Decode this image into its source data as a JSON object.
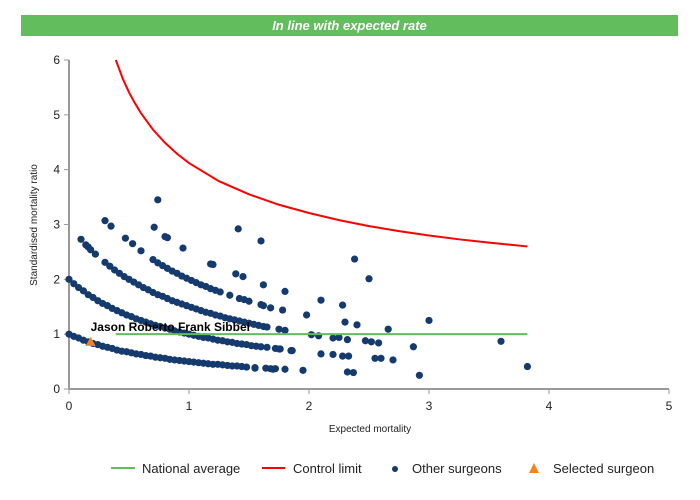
{
  "banner": {
    "text": "In line with expected rate",
    "color": "#62bd5c"
  },
  "chart_data": {
    "type": "scatter",
    "title": "",
    "xlabel": "Expected mortality",
    "ylabel": "Standardised mortality ratio",
    "xlim": [
      0,
      5
    ],
    "ylim": [
      0,
      6
    ],
    "x_ticks": [
      "0",
      "1",
      "2",
      "3",
      "4",
      "5"
    ],
    "y_ticks": [
      "0",
      "1",
      "2",
      "3",
      "4",
      "5",
      "6"
    ],
    "grid": false,
    "legend_placement": "bottom",
    "national_average": {
      "name": "National average",
      "color": "#62bd5c",
      "y": 1,
      "x_range": [
        0.39,
        3.82
      ]
    },
    "control_limit": {
      "name": "Control limit",
      "color": "#ff0000",
      "points": [
        [
          0.39,
          6.0
        ],
        [
          0.45,
          5.65
        ],
        [
          0.5,
          5.41
        ],
        [
          0.55,
          5.21
        ],
        [
          0.6,
          5.03
        ],
        [
          0.7,
          4.73
        ],
        [
          0.8,
          4.49
        ],
        [
          0.9,
          4.29
        ],
        [
          1.0,
          4.12
        ],
        [
          1.25,
          3.79
        ],
        [
          1.5,
          3.55
        ],
        [
          1.75,
          3.36
        ],
        [
          2.0,
          3.21
        ],
        [
          2.25,
          3.08
        ],
        [
          2.5,
          2.97
        ],
        [
          2.75,
          2.88
        ],
        [
          3.0,
          2.8
        ],
        [
          3.25,
          2.73
        ],
        [
          3.5,
          2.67
        ],
        [
          3.82,
          2.6
        ]
      ]
    },
    "other_surgeons": {
      "name": "Other surgeons",
      "color": "#143a6e",
      "points": [
        [
          0,
          1
        ],
        [
          0.04,
          0.96
        ],
        [
          0.08,
          0.93
        ],
        [
          0.12,
          0.89
        ],
        [
          0.16,
          0.86
        ],
        [
          0.2,
          0.83
        ],
        [
          0.24,
          0.81
        ],
        [
          0.28,
          0.78
        ],
        [
          0.32,
          0.76
        ],
        [
          0.36,
          0.74
        ],
        [
          0.4,
          0.71
        ],
        [
          0.44,
          0.69
        ],
        [
          0.48,
          0.68
        ],
        [
          0.52,
          0.66
        ],
        [
          0.56,
          0.64
        ],
        [
          0.6,
          0.63
        ],
        [
          0.64,
          0.61
        ],
        [
          0.68,
          0.6
        ],
        [
          0.72,
          0.58
        ],
        [
          0.76,
          0.57
        ],
        [
          0.8,
          0.56
        ],
        [
          0.84,
          0.54
        ],
        [
          0.88,
          0.53
        ],
        [
          0.92,
          0.52
        ],
        [
          0.96,
          0.51
        ],
        [
          1.0,
          0.5
        ],
        [
          1.04,
          0.49
        ],
        [
          1.08,
          0.48
        ],
        [
          1.12,
          0.47
        ],
        [
          1.16,
          0.46
        ],
        [
          1.2,
          0.45
        ],
        [
          1.24,
          0.45
        ],
        [
          1.28,
          0.44
        ],
        [
          1.32,
          0.43
        ],
        [
          1.36,
          0.42
        ],
        [
          1.4,
          0.42
        ],
        [
          1.44,
          0.41
        ],
        [
          1.48,
          0.4
        ],
        [
          1.55,
          0.39
        ],
        [
          1.64,
          0.38
        ],
        [
          1.68,
          0.37
        ],
        [
          1.72,
          0.37
        ],
        [
          1.8,
          0.36
        ],
        [
          1.95,
          0.34
        ],
        [
          0,
          2
        ],
        [
          0.04,
          1.92
        ],
        [
          0.08,
          1.85
        ],
        [
          0.12,
          1.79
        ],
        [
          0.16,
          1.72
        ],
        [
          0.2,
          1.67
        ],
        [
          0.24,
          1.61
        ],
        [
          0.28,
          1.56
        ],
        [
          0.32,
          1.52
        ],
        [
          0.36,
          1.47
        ],
        [
          0.4,
          1.43
        ],
        [
          0.44,
          1.39
        ],
        [
          0.48,
          1.35
        ],
        [
          0.52,
          1.32
        ],
        [
          0.56,
          1.28
        ],
        [
          0.6,
          1.25
        ],
        [
          0.64,
          1.22
        ],
        [
          0.68,
          1.19
        ],
        [
          0.72,
          1.16
        ],
        [
          0.76,
          1.14
        ],
        [
          0.8,
          1.11
        ],
        [
          0.84,
          1.09
        ],
        [
          0.88,
          1.06
        ],
        [
          0.92,
          1.04
        ],
        [
          0.96,
          1.02
        ],
        [
          1.0,
          1.0
        ],
        [
          1.04,
          0.98
        ],
        [
          1.08,
          0.96
        ],
        [
          1.12,
          0.94
        ],
        [
          1.16,
          0.93
        ],
        [
          1.2,
          0.91
        ],
        [
          1.24,
          0.89
        ],
        [
          1.28,
          0.88
        ],
        [
          1.32,
          0.86
        ],
        [
          1.36,
          0.85
        ],
        [
          1.4,
          0.83
        ],
        [
          1.44,
          0.82
        ],
        [
          1.48,
          0.81
        ],
        [
          1.52,
          0.79
        ],
        [
          1.56,
          0.78
        ],
        [
          1.6,
          0.77
        ],
        [
          1.65,
          0.76
        ],
        [
          1.72,
          0.74
        ],
        [
          1.75,
          0.73
        ],
        [
          1.85,
          0.7
        ],
        [
          0.1,
          2.73
        ],
        [
          0.14,
          2.63
        ],
        [
          0.16,
          2.59
        ],
        [
          0.18,
          2.54
        ],
        [
          0.22,
          2.46
        ],
        [
          0.3,
          2.31
        ],
        [
          0.34,
          2.24
        ],
        [
          0.38,
          2.17
        ],
        [
          0.42,
          2.11
        ],
        [
          0.46,
          2.05
        ],
        [
          0.5,
          2.0
        ],
        [
          0.54,
          1.95
        ],
        [
          0.58,
          1.9
        ],
        [
          0.62,
          1.85
        ],
        [
          0.66,
          1.81
        ],
        [
          0.7,
          1.76
        ],
        [
          0.74,
          1.72
        ],
        [
          0.78,
          1.69
        ],
        [
          0.82,
          1.65
        ],
        [
          0.86,
          1.61
        ],
        [
          0.9,
          1.58
        ],
        [
          0.94,
          1.55
        ],
        [
          0.98,
          1.52
        ],
        [
          1.02,
          1.49
        ],
        [
          1.06,
          1.46
        ],
        [
          1.1,
          1.43
        ],
        [
          1.14,
          1.4
        ],
        [
          1.18,
          1.38
        ],
        [
          1.22,
          1.35
        ],
        [
          1.26,
          1.33
        ],
        [
          1.3,
          1.3
        ],
        [
          1.34,
          1.28
        ],
        [
          1.38,
          1.26
        ],
        [
          1.42,
          1.24
        ],
        [
          1.46,
          1.22
        ],
        [
          1.5,
          1.2
        ],
        [
          1.54,
          1.18
        ],
        [
          1.58,
          1.16
        ],
        [
          1.62,
          1.14
        ],
        [
          1.65,
          1.13
        ],
        [
          1.75,
          1.09
        ],
        [
          1.8,
          1.07
        ],
        [
          0.3,
          3.07
        ],
        [
          0.35,
          2.97
        ],
        [
          0.47,
          2.75
        ],
        [
          0.53,
          2.65
        ],
        [
          0.6,
          2.52
        ],
        [
          0.7,
          2.36
        ],
        [
          0.74,
          2.3
        ],
        [
          0.78,
          2.25
        ],
        [
          0.82,
          2.2
        ],
        [
          0.86,
          2.15
        ],
        [
          0.9,
          2.11
        ],
        [
          0.94,
          2.06
        ],
        [
          0.98,
          2.02
        ],
        [
          1.02,
          1.98
        ],
        [
          1.06,
          1.94
        ],
        [
          1.1,
          1.9
        ],
        [
          1.14,
          1.87
        ],
        [
          1.18,
          1.83
        ],
        [
          1.22,
          1.8
        ],
        [
          1.26,
          1.77
        ],
        [
          1.34,
          1.71
        ],
        [
          1.42,
          1.65
        ],
        [
          1.46,
          1.63
        ],
        [
          1.5,
          1.6
        ],
        [
          1.6,
          1.54
        ],
        [
          0.74,
          3.45
        ],
        [
          0.71,
          2.95
        ],
        [
          0.8,
          2.78
        ],
        [
          0.82,
          2.76
        ],
        [
          0.95,
          2.57
        ],
        [
          1.41,
          2.92
        ],
        [
          1.6,
          2.7
        ],
        [
          1.18,
          2.28
        ],
        [
          1.2,
          2.27
        ],
        [
          1.39,
          2.1
        ],
        [
          1.45,
          2.05
        ],
        [
          1.62,
          1.9
        ],
        [
          1.8,
          1.78
        ],
        [
          1.68,
          1.48
        ],
        [
          1.78,
          1.44
        ],
        [
          1.62,
          1.52
        ],
        [
          2.38,
          2.37
        ],
        [
          2.5,
          2.01
        ],
        [
          1.98,
          1.35
        ],
        [
          2.1,
          1.62
        ],
        [
          2.28,
          1.53
        ],
        [
          2.3,
          1.22
        ],
        [
          2.4,
          1.17
        ],
        [
          2.66,
          1.09
        ],
        [
          3.0,
          1.25
        ],
        [
          2.02,
          0.99
        ],
        [
          2.08,
          0.97
        ],
        [
          2.2,
          0.93
        ],
        [
          2.25,
          0.94
        ],
        [
          2.32,
          0.9
        ],
        [
          2.47,
          0.88
        ],
        [
          2.52,
          0.86
        ],
        [
          2.58,
          0.84
        ],
        [
          2.87,
          0.77
        ],
        [
          3.6,
          0.87
        ],
        [
          2.1,
          0.64
        ],
        [
          2.2,
          0.63
        ],
        [
          2.28,
          0.6
        ],
        [
          2.33,
          0.6
        ],
        [
          2.55,
          0.56
        ],
        [
          2.6,
          0.56
        ],
        [
          2.7,
          0.53
        ],
        [
          2.32,
          0.31
        ],
        [
          2.37,
          0.3
        ],
        [
          2.92,
          0.25
        ],
        [
          3.82,
          0.41
        ],
        [
          1.76,
          0.73
        ],
        [
          1.86,
          0.7
        ],
        [
          1.7,
          0.36
        ],
        [
          1.55,
          0.38
        ]
      ]
    },
    "selected_surgeon": {
      "name": "Selected surgeon",
      "color": "#f58220",
      "label": "Jason Roberto Frank Sibbel",
      "point": [
        0.18,
        0.86
      ]
    }
  }
}
